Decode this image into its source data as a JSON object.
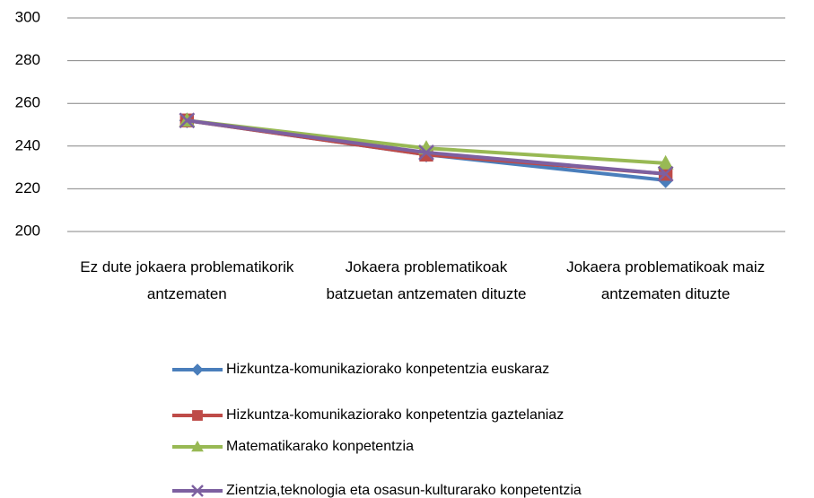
{
  "chart_data": {
    "type": "line",
    "categories": [
      "Ez dute jokaera problematikorik antzematen",
      "Jokaera problematikoak batzuetan antzematen dituzte",
      "Jokaera problematikoak maiz antzematen dituzte"
    ],
    "series": [
      {
        "name": "Hizkuntza-komunikaziorako konpetentzia euskaraz",
        "color": "#4a7ebb",
        "marker": "diamond",
        "values": [
          252,
          236,
          224
        ]
      },
      {
        "name": "Hizkuntza-komunikaziorako konpetentzia gaztelaniaz",
        "color": "#be4b48",
        "marker": "square",
        "values": [
          252,
          236,
          227
        ]
      },
      {
        "name": "Matematikarako konpetentzia",
        "color": "#98b954",
        "marker": "triangle",
        "values": [
          252,
          239,
          232
        ]
      },
      {
        "name": "Zientzia,teknologia eta osasun-kulturarako konpetentzia",
        "color": "#7d60a0",
        "marker": "x",
        "values": [
          252,
          237,
          227
        ]
      }
    ],
    "ylim": [
      200,
      300
    ],
    "yticks": [
      200,
      220,
      240,
      260,
      280,
      300
    ],
    "grid": true,
    "legend": "bottom"
  }
}
